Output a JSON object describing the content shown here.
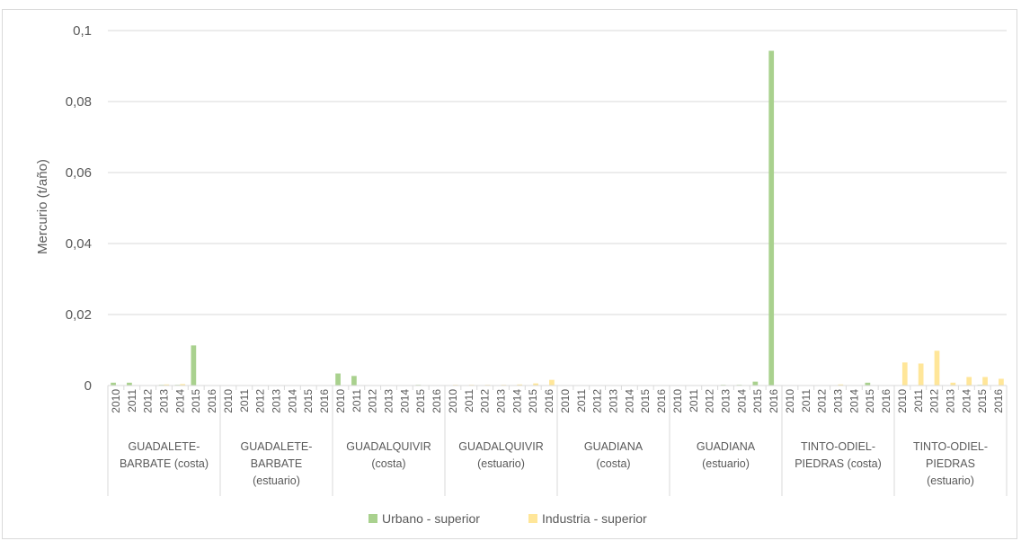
{
  "chart_data": {
    "type": "bar",
    "title": "",
    "ylabel": "Mercurio (t/año)",
    "xlabel": "",
    "ylim": [
      0,
      0.1
    ],
    "yticks": [
      "0",
      "0,02",
      "0,04",
      "0,06",
      "0,08",
      "0,1"
    ],
    "years": [
      "2010",
      "2011",
      "2012",
      "2013",
      "2014",
      "2015",
      "2016"
    ],
    "groups": [
      {
        "label": [
          "GUADALETE-",
          "BARBATE (costa)"
        ]
      },
      {
        "label": [
          "GUADALETE-",
          "BARBATE",
          "(estuario)"
        ]
      },
      {
        "label": [
          "GUADALQUIVIR",
          "(costa)"
        ]
      },
      {
        "label": [
          "GUADALQUIVIR",
          "(estuario)"
        ]
      },
      {
        "label": [
          "GUADIANA",
          "(costa)"
        ]
      },
      {
        "label": [
          "GUADIANA",
          "(estuario)"
        ]
      },
      {
        "label": [
          "TINTO-ODIEL-",
          "PIEDRAS (costa)"
        ]
      },
      {
        "label": [
          "TINTO-ODIEL-",
          "PIEDRAS",
          "(estuario)"
        ]
      }
    ],
    "series": [
      {
        "name": "Urbano - superior",
        "color": "#a9d18e",
        "values": [
          [
            0.0008,
            0.0008,
            0,
            0.0002,
            0.0002,
            0.0113,
            0
          ],
          [
            0,
            0,
            0,
            0,
            0,
            0,
            0
          ],
          [
            0.0034,
            0.0027,
            0,
            0,
            0,
            0.0002,
            0
          ],
          [
            0,
            0,
            0,
            0,
            0,
            0,
            0
          ],
          [
            0,
            0,
            0,
            0,
            0,
            0,
            0
          ],
          [
            0,
            0,
            0,
            0.0002,
            0.0002,
            0.0011,
            0.0943
          ],
          [
            0,
            0,
            0,
            0,
            0,
            0.0008,
            0
          ],
          [
            0,
            0,
            0,
            0,
            0,
            0.0002,
            0
          ]
        ]
      },
      {
        "name": "Industria - superior",
        "color": "#ffe699",
        "values": [
          [
            0,
            0,
            0,
            0.0003,
            0.0004,
            0,
            0
          ],
          [
            0,
            0,
            0,
            0,
            0,
            0,
            0
          ],
          [
            0,
            0,
            0,
            0,
            0,
            0,
            0
          ],
          [
            0.0002,
            0.0002,
            0.0002,
            0.0002,
            0.0003,
            0.0006,
            0.0016
          ],
          [
            0,
            0,
            0,
            0,
            0,
            0,
            0
          ],
          [
            0,
            0,
            0,
            0,
            0,
            0,
            0
          ],
          [
            0,
            0,
            0,
            0.0003,
            0,
            0,
            0
          ],
          [
            0.0065,
            0.0062,
            0.0098,
            0.0008,
            0.0024,
            0.0024,
            0.0019
          ]
        ]
      }
    ],
    "legend_position": "bottom"
  }
}
